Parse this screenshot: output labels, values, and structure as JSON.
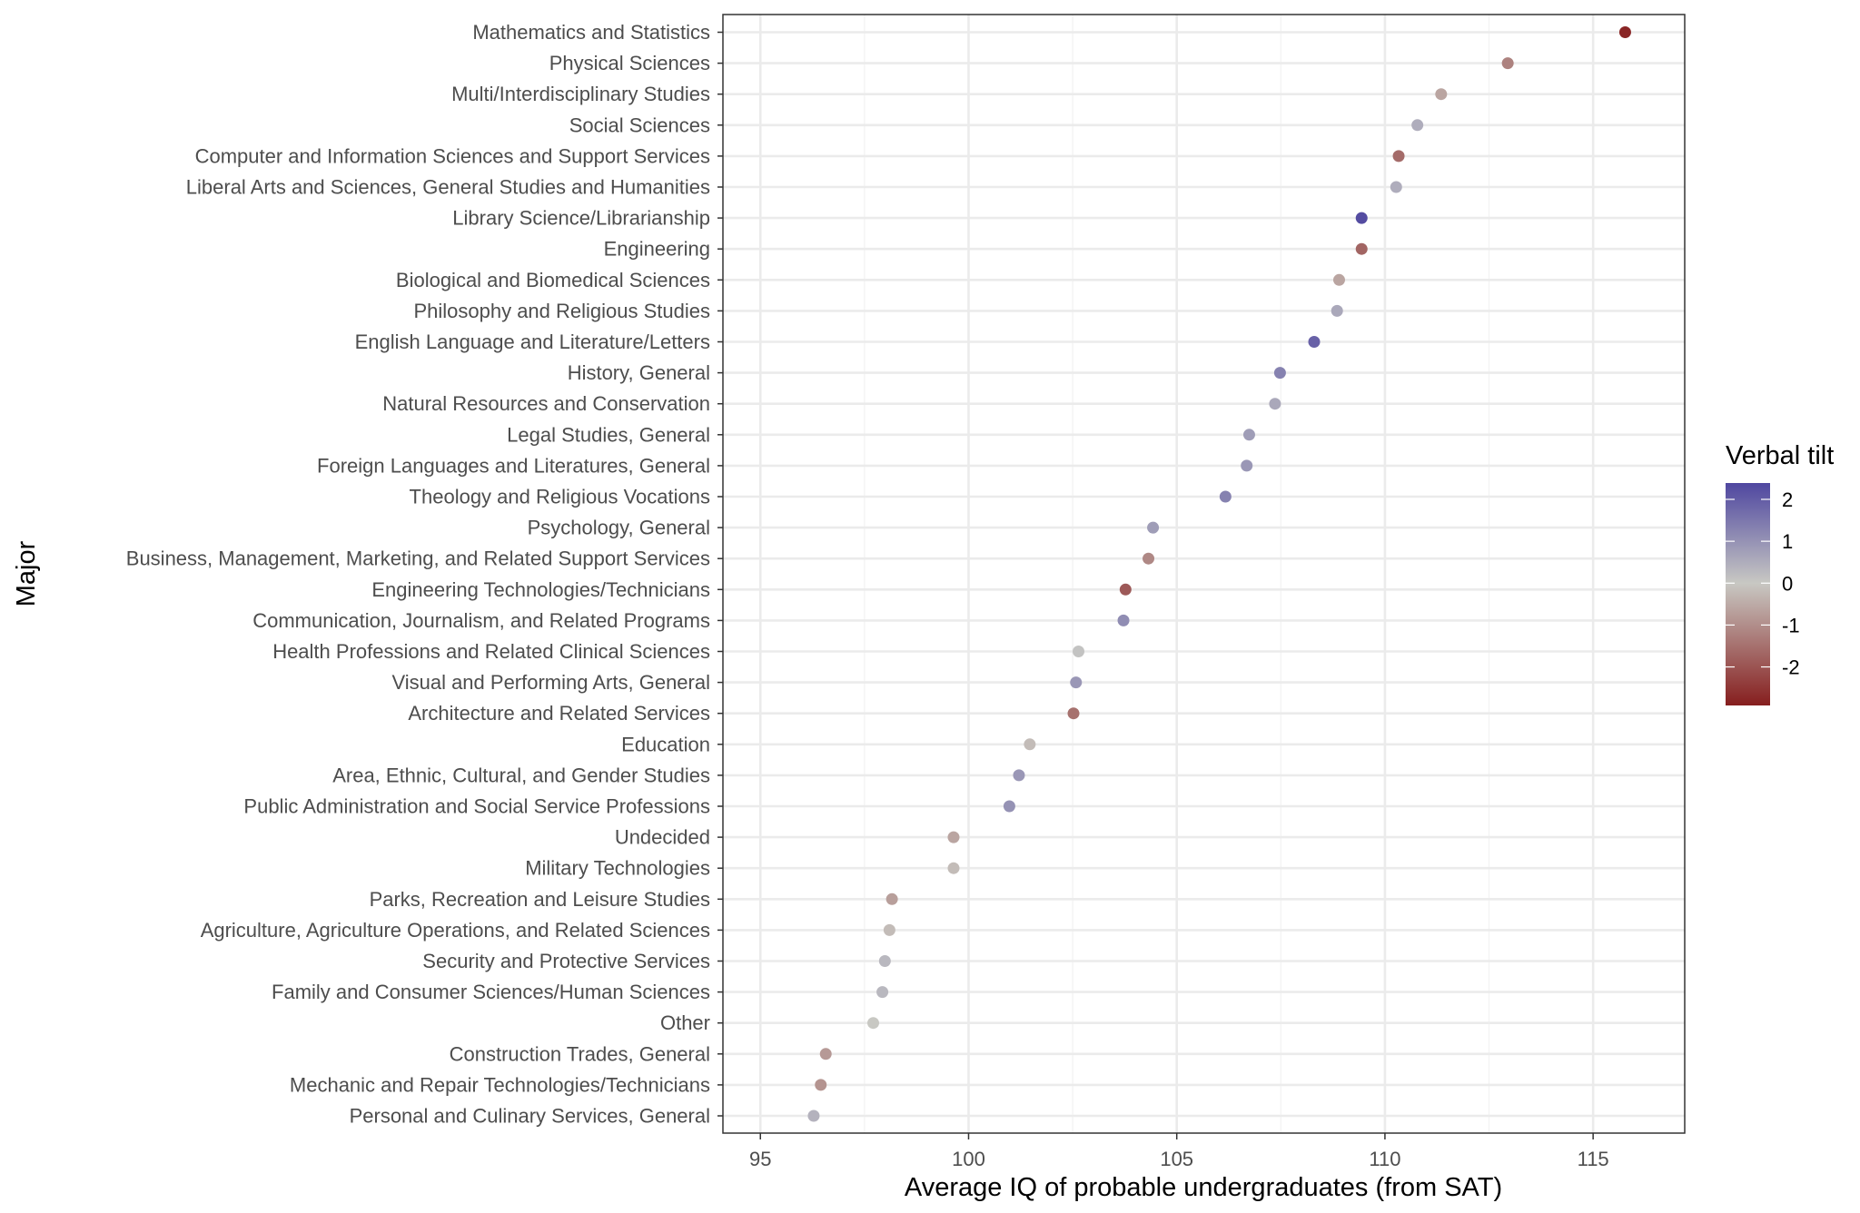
{
  "chart_data": {
    "type": "scatter",
    "xlabel": "Average IQ of probable undergraduates (from SAT)",
    "ylabel": "Major",
    "xlim": [
      94.1,
      117.2
    ],
    "x_ticks": [
      "95",
      "100",
      "105",
      "110",
      "115"
    ],
    "grid": true,
    "legend": {
      "title": "Verbal tilt",
      "placement": "right",
      "ticks": [
        "2",
        "1",
        "0",
        "-1",
        "-2"
      ],
      "range": [
        -2.92,
        2.39
      ],
      "colors": {
        "low": "#861e1e",
        "mid": "#c8c8c3",
        "high": "#4f47a0"
      }
    },
    "points": [
      {
        "major": "Mathematics and Statistics",
        "x": 115.77,
        "tilt": -2.8
      },
      {
        "major": "Physical Sciences",
        "x": 112.95,
        "tilt": -1.2
      },
      {
        "major": "Multi/Interdisciplinary Studies",
        "x": 111.35,
        "tilt": -0.6
      },
      {
        "major": "Social Sciences",
        "x": 110.78,
        "tilt": 0.5
      },
      {
        "major": "Computer and Information Sciences and Support Services",
        "x": 110.33,
        "tilt": -1.6
      },
      {
        "major": "Liberal Arts and Sciences, General Studies and Humanities",
        "x": 110.27,
        "tilt": 0.5
      },
      {
        "major": "Library Science/Librarianship",
        "x": 109.44,
        "tilt": 2.3
      },
      {
        "major": "Engineering",
        "x": 109.44,
        "tilt": -1.7
      },
      {
        "major": "Biological and Biomedical Sciences",
        "x": 108.9,
        "tilt": -0.6
      },
      {
        "major": "Philosophy and Religious Studies",
        "x": 108.85,
        "tilt": 0.6
      },
      {
        "major": "English Language and Literature/Letters",
        "x": 108.3,
        "tilt": 1.9
      },
      {
        "major": "History, General",
        "x": 107.48,
        "tilt": 1.3
      },
      {
        "major": "Natural Resources and Conservation",
        "x": 107.36,
        "tilt": 0.6
      },
      {
        "major": "Legal Studies, General",
        "x": 106.74,
        "tilt": 0.8
      },
      {
        "major": "Foreign Languages and Literatures, General",
        "x": 106.68,
        "tilt": 0.9
      },
      {
        "major": "Theology and Religious Vocations",
        "x": 106.17,
        "tilt": 1.3
      },
      {
        "major": "Psychology, General",
        "x": 104.43,
        "tilt": 0.8
      },
      {
        "major": "Business, Management, Marketing, and Related Support Services",
        "x": 104.32,
        "tilt": -1.1
      },
      {
        "major": "Engineering Technologies/Technicians",
        "x": 103.77,
        "tilt": -1.9
      },
      {
        "major": "Communication, Journalism, and Related Programs",
        "x": 103.72,
        "tilt": 1.1
      },
      {
        "major": "Health Professions and Related Clinical Sciences",
        "x": 102.64,
        "tilt": 0.1
      },
      {
        "major": "Visual and Performing Arts, General",
        "x": 102.58,
        "tilt": 0.9
      },
      {
        "major": "Architecture and Related Services",
        "x": 102.52,
        "tilt": -1.5
      },
      {
        "major": "Education",
        "x": 101.47,
        "tilt": -0.2
      },
      {
        "major": "Area, Ethnic, Cultural, and Gender Studies",
        "x": 101.21,
        "tilt": 0.9
      },
      {
        "major": "Public Administration and Social Service Professions",
        "x": 100.98,
        "tilt": 1.0
      },
      {
        "major": "Undecided",
        "x": 99.64,
        "tilt": -0.6
      },
      {
        "major": "Military Technologies",
        "x": 99.64,
        "tilt": -0.2
      },
      {
        "major": "Parks, Recreation and Leisure Studies",
        "x": 98.16,
        "tilt": -0.7
      },
      {
        "major": "Agriculture, Agriculture Operations, and Related Sciences",
        "x": 98.1,
        "tilt": -0.2
      },
      {
        "major": "Security and Protective Services",
        "x": 97.99,
        "tilt": 0.3
      },
      {
        "major": "Family and Consumer Sciences/Human Sciences",
        "x": 97.93,
        "tilt": 0.3
      },
      {
        "major": "Other",
        "x": 97.71,
        "tilt": 0.0
      },
      {
        "major": "Construction Trades, General",
        "x": 96.57,
        "tilt": -0.8
      },
      {
        "major": "Mechanic and Repair Technologies/Technicians",
        "x": 96.45,
        "tilt": -0.9
      },
      {
        "major": "Personal and Culinary Services, General",
        "x": 96.28,
        "tilt": 0.4
      }
    ]
  }
}
